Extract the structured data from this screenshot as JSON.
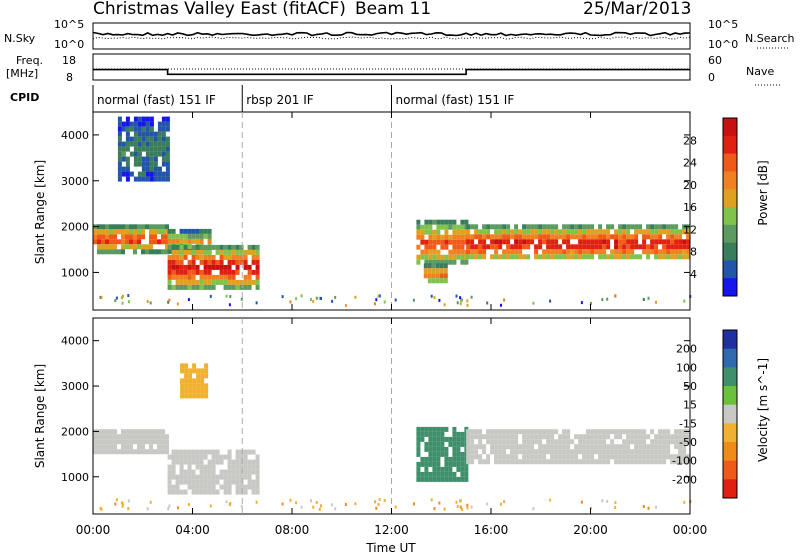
{
  "header": {
    "title": "Christmas Valley East (fitACF)",
    "beam": "Beam 11",
    "date": "25/Mar/2013"
  },
  "nsky_panel": {
    "left_label": "N.Sky",
    "right_label": "N.Search",
    "left_ticks": [
      "10^5",
      "10^0"
    ],
    "right_ticks": [
      "10^5",
      "10^0"
    ]
  },
  "freq_panel": {
    "left_label_1": "Freq.",
    "left_label_2": "[MHz]",
    "left_ticks": [
      "18",
      "8"
    ],
    "right_label": "Nave",
    "right_ticks": [
      "60",
      "0"
    ]
  },
  "cpid": {
    "label": "CPID",
    "segments": [
      {
        "name": "normal (fast) 151 IF",
        "start_hour": 0,
        "end_hour": 6
      },
      {
        "name": "rbsp 201 IF",
        "start_hour": 6,
        "end_hour": 12
      },
      {
        "name": "normal (fast) 151 IF",
        "start_hour": 12,
        "end_hour": 24
      }
    ]
  },
  "x_axis": {
    "label": "Time UT",
    "ticks": [
      "00:00",
      "04:00",
      "08:00",
      "12:00",
      "16:00",
      "20:00",
      "00:00"
    ]
  },
  "power_panel": {
    "ylabel": "Slant Range [km]",
    "yticks": [
      "1000",
      "2000",
      "3000",
      "4000"
    ],
    "colorbar_label": "Power [dB]",
    "colorbar_ticks": [
      "4",
      "8",
      "12",
      "16",
      "20",
      "24",
      "28"
    ],
    "colorbar_colors": [
      "#1515ee",
      "#2255aa",
      "#3a7d5a",
      "#5c9a62",
      "#7fc34a",
      "#e0a020",
      "#f08020",
      "#f05a18",
      "#e02010",
      "#c81010"
    ]
  },
  "velocity_panel": {
    "ylabel": "Slant Range [km]",
    "yticks": [
      "1000",
      "2000",
      "3000",
      "4000"
    ],
    "colorbar_label": "Velocity [m s^-1]",
    "colorbar_ticks": [
      "200",
      "100",
      "50",
      "15",
      "-15",
      "-50",
      "-100",
      "-200"
    ],
    "colorbar_colors": [
      "#2030a0",
      "#2f6ab0",
      "#3f8f6a",
      "#6ac23c",
      "#c8c8c4",
      "#f0b030",
      "#f08a18",
      "#f05a18",
      "#e02010"
    ]
  },
  "chart_data": {
    "type": "heatmap",
    "x_unit": "hours UT",
    "xlim": [
      0,
      24
    ],
    "ylim_km": [
      180,
      4500
    ],
    "power_features": [
      {
        "start_hour": 0.0,
        "end_hour": 3.0,
        "range_start_km": 1500,
        "range_end_km": 2050,
        "peak_db": 26
      },
      {
        "start_hour": 3.0,
        "end_hour": 4.7,
        "range_start_km": 1500,
        "range_end_km": 1950,
        "peak_db": 18
      },
      {
        "start_hour": 3.0,
        "end_hour": 6.6,
        "range_start_km": 700,
        "range_end_km": 1600,
        "peak_db": 29
      },
      {
        "start_hour": 13.0,
        "end_hour": 15.0,
        "range_start_km": 1200,
        "range_end_km": 2150,
        "peak_db": 24
      },
      {
        "start_hour": 13.3,
        "end_hour": 14.2,
        "range_start_km": 800,
        "range_end_km": 1200,
        "peak_db": 22
      },
      {
        "start_hour": 15.0,
        "end_hour": 24.0,
        "range_start_km": 1300,
        "range_end_km": 2050,
        "peak_db": 28
      },
      {
        "start_hour": 1.0,
        "end_hour": 3.0,
        "range_start_km": 3000,
        "range_end_km": 4400,
        "peak_db": 8
      }
    ],
    "velocity_features": [
      {
        "start_hour": 0.0,
        "end_hour": 3.0,
        "range_start_km": 1500,
        "range_end_km": 2050,
        "velocity_mps": 0
      },
      {
        "start_hour": 3.0,
        "end_hour": 6.6,
        "range_start_km": 700,
        "range_end_km": 1600,
        "velocity_mps": 0
      },
      {
        "start_hour": 3.5,
        "end_hour": 4.6,
        "range_start_km": 2800,
        "range_end_km": 3500,
        "velocity_mps": -40
      },
      {
        "start_hour": 13.0,
        "end_hour": 15.0,
        "range_start_km": 900,
        "range_end_km": 2100,
        "velocity_mps": 40
      },
      {
        "start_hour": 15.0,
        "end_hour": 24.0,
        "range_start_km": 1300,
        "range_end_km": 2050,
        "velocity_mps": 0
      }
    ],
    "frequency_mhz": [
      {
        "start_hour": 0.0,
        "end_hour": 3.0,
        "value": 12
      },
      {
        "start_hour": 3.0,
        "end_hour": 15.0,
        "value": 10.2
      },
      {
        "start_hour": 15.0,
        "end_hour": 24.0,
        "value": 12
      }
    ]
  }
}
